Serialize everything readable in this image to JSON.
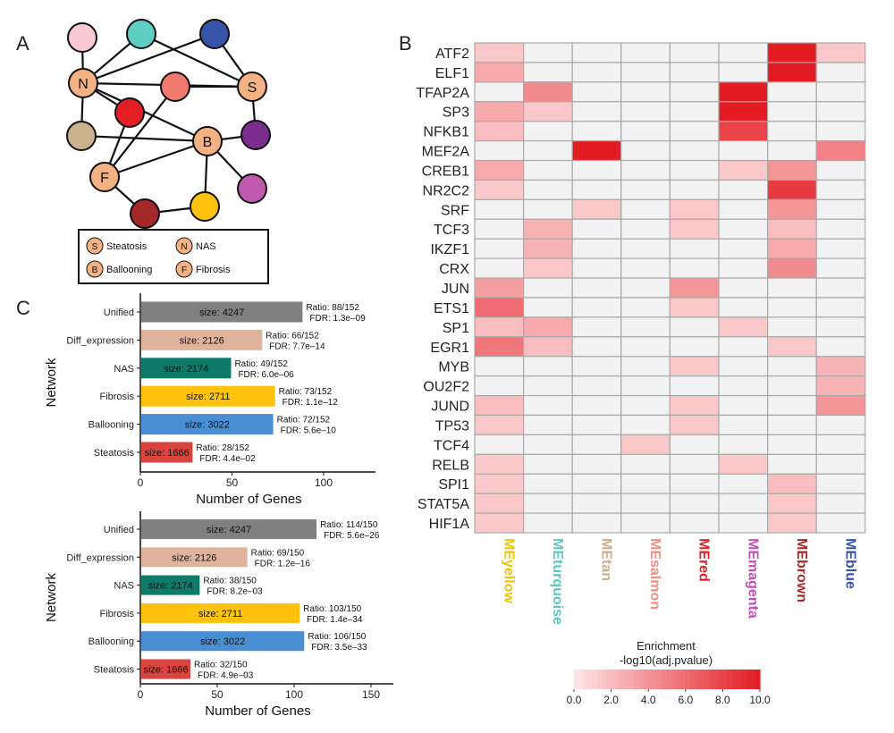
{
  "panel_labels": {
    "a": "A",
    "b": "B",
    "c": "C"
  },
  "network": {
    "legend": [
      {
        "letter": "S",
        "label": "Steatosis"
      },
      {
        "letter": "N",
        "label": "NAS"
      },
      {
        "letter": "B",
        "label": "Ballooning"
      },
      {
        "letter": "F",
        "label": "Fibrosis"
      }
    ],
    "nodes": [
      {
        "id": "N",
        "label": "N",
        "color": "#f4b183"
      },
      {
        "id": "S",
        "label": "S",
        "color": "#f4b183"
      },
      {
        "id": "B",
        "label": "B",
        "color": "#f4b183"
      },
      {
        "id": "F",
        "label": "F",
        "color": "#f4b183"
      },
      {
        "id": "pink",
        "label": "",
        "color": "#f8c8d4"
      },
      {
        "id": "turquoise",
        "label": "",
        "color": "#5fcfc3"
      },
      {
        "id": "blue",
        "label": "",
        "color": "#3652a9"
      },
      {
        "id": "salmon",
        "label": "",
        "color": "#ef7a6d"
      },
      {
        "id": "red",
        "label": "",
        "color": "#e31e24"
      },
      {
        "id": "tan",
        "label": "",
        "color": "#cbb28c"
      },
      {
        "id": "purple",
        "label": "",
        "color": "#7b2d8e"
      },
      {
        "id": "magenta",
        "label": "",
        "color": "#c05aae"
      },
      {
        "id": "brown",
        "label": "",
        "color": "#a42a2a"
      },
      {
        "id": "yellow",
        "label": "",
        "color": "#ffc20e"
      }
    ],
    "edges": [
      [
        "N",
        "pink"
      ],
      [
        "N",
        "turquoise"
      ],
      [
        "N",
        "blue"
      ],
      [
        "N",
        "S"
      ],
      [
        "N",
        "red"
      ],
      [
        "N",
        "tan"
      ],
      [
        "N",
        "B"
      ],
      [
        "turquoise",
        "S"
      ],
      [
        "blue",
        "S"
      ],
      [
        "S",
        "salmon"
      ],
      [
        "S",
        "purple"
      ],
      [
        "salmon",
        "F"
      ],
      [
        "red",
        "F"
      ],
      [
        "tan",
        "B"
      ],
      [
        "B",
        "purple"
      ],
      [
        "B",
        "magenta"
      ],
      [
        "B",
        "yellow"
      ],
      [
        "B",
        "F"
      ],
      [
        "F",
        "brown"
      ],
      [
        "brown",
        "yellow"
      ]
    ]
  },
  "chart_data": [
    {
      "type": "heatmap",
      "panel": "B",
      "rows": [
        "ATF2",
        "ELF1",
        "TFAP2A",
        "SP3",
        "NFKB1",
        "MEF2A",
        "CREB1",
        "NR2C2",
        "SRF",
        "TCF3",
        "IKZF1",
        "CRX",
        "JUN",
        "ETS1",
        "SP1",
        "EGR1",
        "MYB",
        "OU2F2",
        "JUND",
        "TP53",
        "TCF4",
        "RELB",
        "SPI1",
        "STAT5A",
        "HIF1A"
      ],
      "columns": [
        "MEyellow",
        "MEturquoise",
        "MEtan",
        "MEsalmon",
        "MEred",
        "MEmagenta",
        "MEbrown",
        "MEblue"
      ],
      "column_colors": [
        "#f2c300",
        "#5cc8c0",
        "#c9b08a",
        "#f08f80",
        "#e31e24",
        "#c050b8",
        "#a42a2a",
        "#3652a9"
      ],
      "values": [
        [
          1.5,
          0,
          0,
          0,
          0,
          0,
          10,
          1.5
        ],
        [
          3,
          0,
          0,
          0,
          0,
          0,
          10,
          0
        ],
        [
          0,
          4.5,
          0,
          0,
          0,
          10,
          0,
          0
        ],
        [
          3,
          1.5,
          0,
          0,
          0,
          10,
          0,
          0
        ],
        [
          2,
          0,
          0,
          0,
          0,
          8,
          0,
          0
        ],
        [
          0,
          0,
          10,
          0,
          0,
          0,
          0,
          5
        ],
        [
          3,
          0,
          0,
          0,
          0,
          1.5,
          4,
          0
        ],
        [
          1.5,
          0,
          0,
          0,
          0,
          0,
          8.5,
          0
        ],
        [
          0,
          0,
          1.5,
          0,
          1.5,
          0,
          4,
          0
        ],
        [
          0,
          2.5,
          0,
          0,
          1.5,
          0,
          2,
          0
        ],
        [
          0,
          2.5,
          0,
          0,
          0,
          0,
          3,
          0
        ],
        [
          0,
          1.5,
          0,
          0,
          0,
          0,
          4.5,
          0
        ],
        [
          3.5,
          0,
          0,
          0,
          4,
          0,
          0,
          0
        ],
        [
          6,
          0,
          0,
          0,
          1.5,
          0,
          0,
          0
        ],
        [
          2,
          3,
          0,
          0,
          0,
          1.5,
          0,
          0
        ],
        [
          5.5,
          2,
          0,
          0,
          0,
          0,
          1.5,
          0
        ],
        [
          0,
          0,
          0,
          0,
          1.5,
          0,
          0,
          2.5
        ],
        [
          0,
          0,
          0,
          0,
          0,
          0,
          0,
          2.5
        ],
        [
          2,
          0,
          0,
          0,
          1.5,
          0,
          0,
          4
        ],
        [
          1.5,
          0,
          0,
          0,
          1.5,
          0,
          0,
          0
        ],
        [
          0,
          0,
          0,
          1.5,
          0,
          0,
          0,
          0
        ],
        [
          1.5,
          0,
          0,
          0,
          0,
          1.5,
          0,
          0
        ],
        [
          1.5,
          0,
          0,
          0,
          0,
          0,
          2,
          0
        ],
        [
          1.5,
          0,
          0,
          0,
          0,
          0,
          1.5,
          0
        ],
        [
          1.5,
          0,
          0,
          0,
          0,
          0,
          1.5,
          0
        ]
      ],
      "colorbar": {
        "title_line1": "Enrichment",
        "title_line2": "-log10(adj.pvalue)",
        "range": [
          0,
          10
        ],
        "ticks": [
          "0.0",
          "2.0",
          "4.0",
          "6.0",
          "8.0",
          "10.0"
        ]
      }
    },
    {
      "type": "bar",
      "panel": "C-top",
      "orientation": "horizontal",
      "categories": [
        "Unified",
        "Diff_expression",
        "NAS",
        "Fibrosis",
        "Ballooning",
        "Steatosis"
      ],
      "values": [
        88,
        66,
        49,
        73,
        72,
        28
      ],
      "sizes": [
        "size: 4247",
        "size: 2126",
        "size: 2174",
        "size: 2711",
        "size: 3022",
        "size: 1666"
      ],
      "ratios": [
        "Ratio: 88/152",
        "Ratio: 66/152",
        "Ratio: 49/152",
        "Ratio: 73/152",
        "Ratio: 72/152",
        "Ratio: 28/152"
      ],
      "fdrs": [
        "FDR: 1.3e‒09",
        "FDR: 7.7e‒14",
        "FDR: 6.0e‒06",
        "FDR: 1.1e‒12",
        "FDR: 5.6e‒10",
        "FDR: 4.4e‒02"
      ],
      "colors": [
        "#808080",
        "#e0b49c",
        "#0f7a6a",
        "#ffc20e",
        "#4a8fd4",
        "#d9443f"
      ],
      "xlim": [
        0,
        130
      ],
      "xticks": [
        0,
        50,
        100
      ],
      "xlabel": "Number of Genes",
      "ylabel": "Network"
    },
    {
      "type": "bar",
      "panel": "C-bottom",
      "orientation": "horizontal",
      "categories": [
        "Unified",
        "Diff_expression",
        "NAS",
        "Fibrosis",
        "Ballooning",
        "Steatosis"
      ],
      "values": [
        114,
        69,
        38,
        103,
        106,
        32
      ],
      "sizes": [
        "size: 4247",
        "size: 2126",
        "size: 2174",
        "size: 2711",
        "size: 3022",
        "size: 1666"
      ],
      "ratios": [
        "Ratio: 114/150",
        "Ratio: 69/150",
        "Ratio: 38/150",
        "Ratio: 103/150",
        "Ratio: 106/150",
        "Ratio: 32/150"
      ],
      "fdrs": [
        "FDR: 5.6e‒26",
        "FDR: 1.2e‒16",
        "FDR: 8.2e‒03",
        "FDR: 1.4e‒34",
        "FDR: 3.5e‒33",
        "FDR: 4.9e‒03"
      ],
      "colors": [
        "#808080",
        "#e0b49c",
        "#0f7a6a",
        "#ffc20e",
        "#4a8fd4",
        "#d9443f"
      ],
      "xlim": [
        0,
        160
      ],
      "xticks": [
        0,
        50,
        100,
        150
      ],
      "xlabel": "Number of Genes",
      "ylabel": "Network"
    }
  ]
}
